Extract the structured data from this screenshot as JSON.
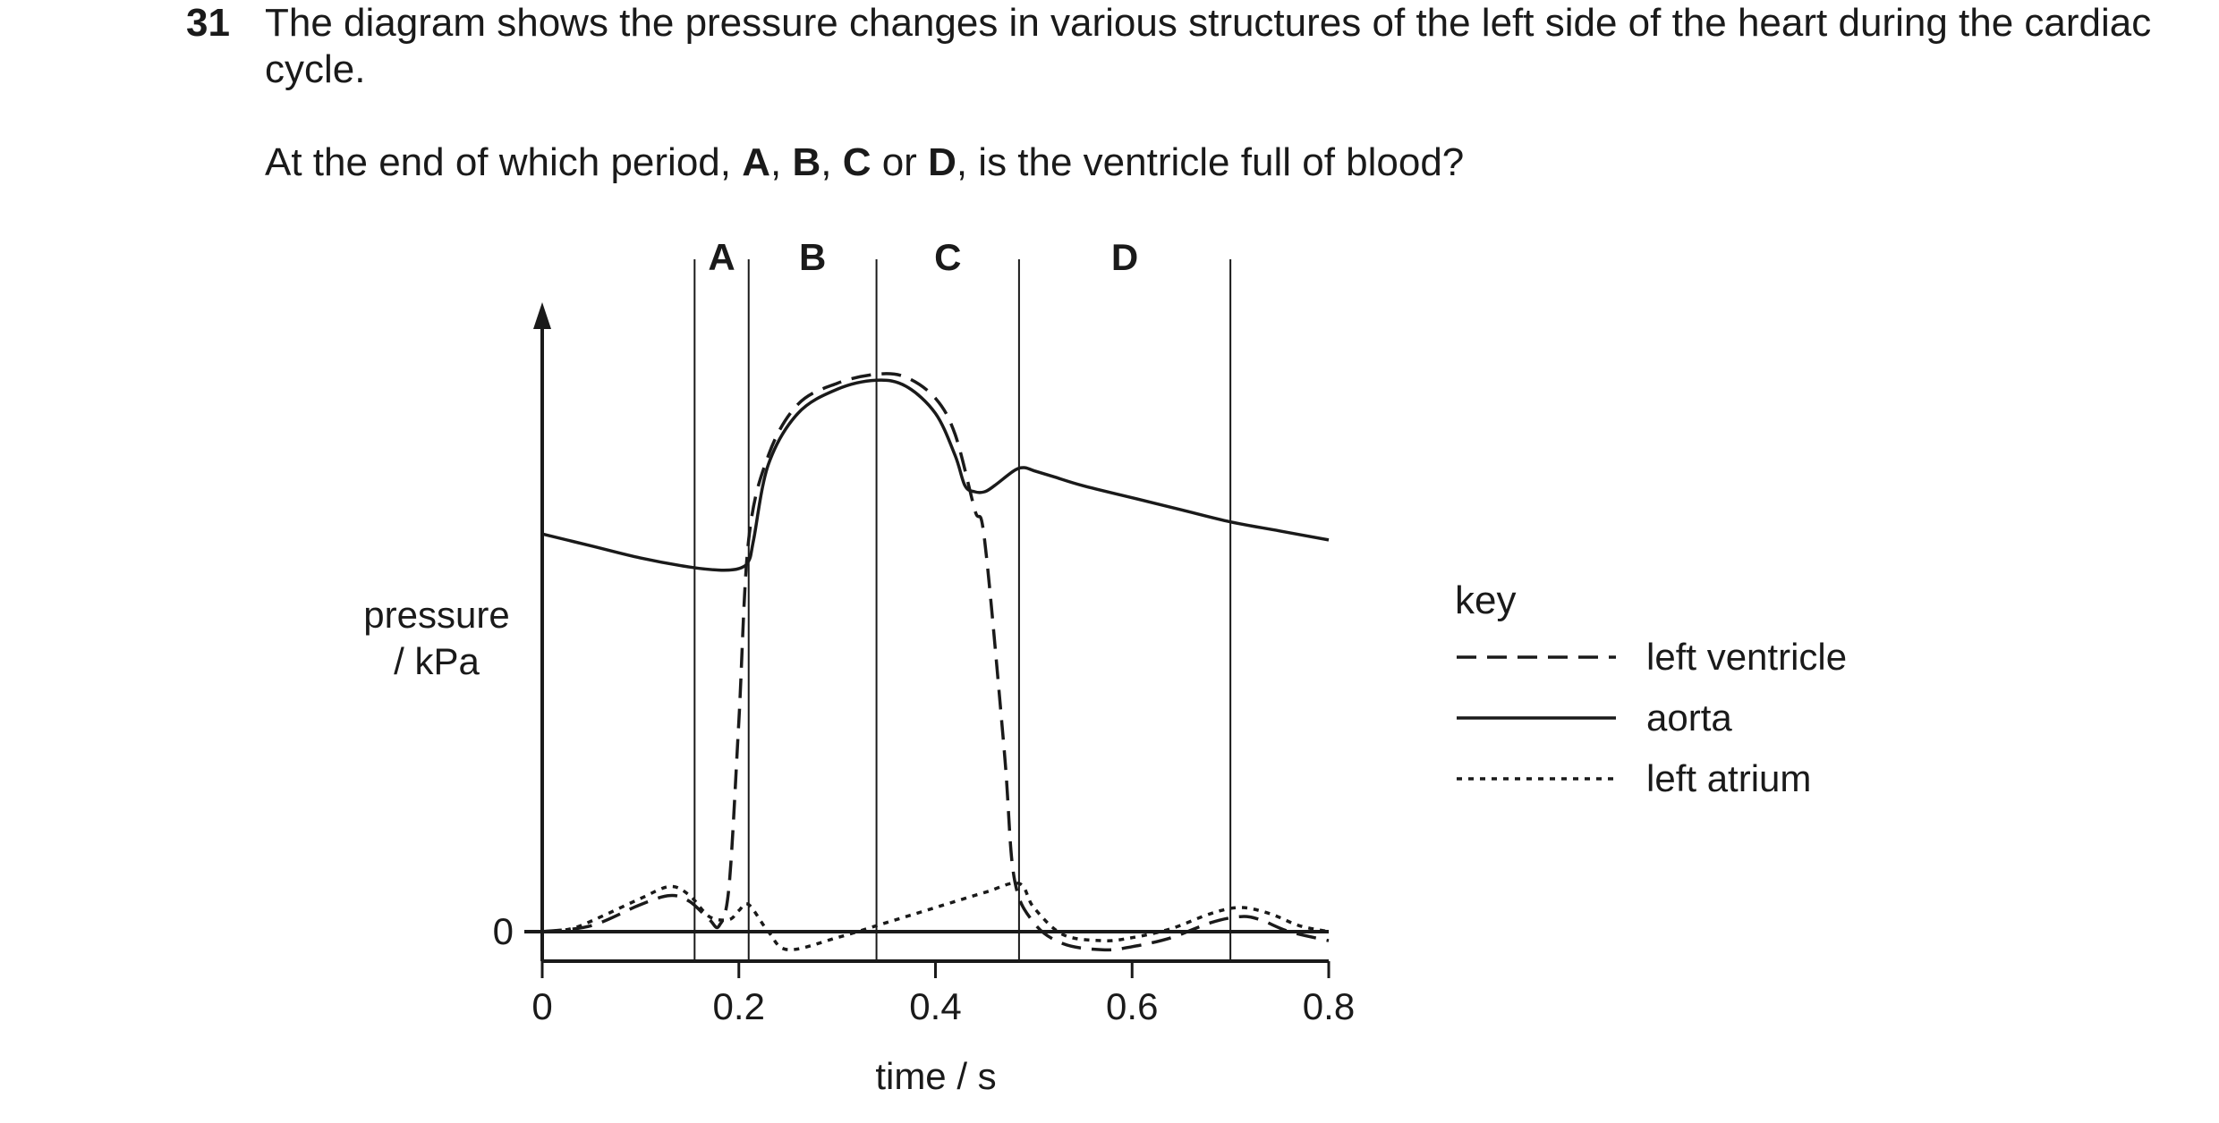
{
  "question": {
    "number": "31",
    "text": "The diagram shows the pressure changes in various structures of the left side of the heart during the cardiac cycle.",
    "prompt_parts": [
      "At the end of which period, ",
      "A",
      ", ",
      "B",
      ", ",
      "C",
      " or ",
      "D",
      ", is the ventricle full of blood?"
    ]
  },
  "chart_data": {
    "type": "line",
    "title": "",
    "xlabel": "time / s",
    "ylabel_lines": [
      "pressure",
      "/ kPa"
    ],
    "xlim": [
      0,
      0.8
    ],
    "x_ticks": [
      "0",
      "0.2",
      "0.4",
      "0.6",
      "0.8"
    ],
    "y_ticks": [
      "0"
    ],
    "y_scale": "pressure (unscaled, only zero marked)",
    "periods": [
      {
        "label": "A",
        "start": 0.155,
        "end": 0.21
      },
      {
        "label": "B",
        "start": 0.21,
        "end": 0.34
      },
      {
        "label": "C",
        "start": 0.34,
        "end": 0.485
      },
      {
        "label": "D",
        "start": 0.485,
        "end": 0.7
      }
    ],
    "series": [
      {
        "name": "left ventricle",
        "style": "dashed",
        "x": [
          0.0,
          0.05,
          0.1,
          0.13,
          0.15,
          0.17,
          0.18,
          0.19,
          0.2,
          0.21,
          0.23,
          0.26,
          0.3,
          0.34,
          0.37,
          0.4,
          0.42,
          0.44,
          0.45,
          0.47,
          0.48,
          0.5,
          0.53,
          0.57,
          0.6,
          0.64,
          0.68,
          0.71,
          0.73,
          0.76,
          0.8
        ],
        "y": [
          0.0,
          0.2,
          0.9,
          1.2,
          1.0,
          0.4,
          0.2,
          1.5,
          7.0,
          13.0,
          15.8,
          17.5,
          18.2,
          18.5,
          18.4,
          17.7,
          16.5,
          14.0,
          13.0,
          6.0,
          1.8,
          0.3,
          -0.4,
          -0.6,
          -0.5,
          -0.2,
          0.3,
          0.5,
          0.4,
          0.0,
          -0.3
        ]
      },
      {
        "name": "aorta",
        "style": "solid",
        "x": [
          0.0,
          0.05,
          0.1,
          0.15,
          0.18,
          0.2,
          0.21,
          0.215,
          0.23,
          0.26,
          0.3,
          0.34,
          0.37,
          0.4,
          0.42,
          0.43,
          0.44,
          0.45,
          0.46,
          0.48,
          0.49,
          0.5,
          0.52,
          0.55,
          0.6,
          0.65,
          0.7,
          0.75,
          0.8
        ],
        "y": [
          13.2,
          12.8,
          12.4,
          12.1,
          12.0,
          12.05,
          12.3,
          13.0,
          15.5,
          17.2,
          18.0,
          18.3,
          18.1,
          17.2,
          15.8,
          14.8,
          14.6,
          14.6,
          14.8,
          15.3,
          15.4,
          15.3,
          15.1,
          14.8,
          14.4,
          14.0,
          13.6,
          13.3,
          13.0
        ]
      },
      {
        "name": "left atrium",
        "style": "dotted",
        "x": [
          0.0,
          0.03,
          0.06,
          0.1,
          0.13,
          0.15,
          0.17,
          0.19,
          0.2,
          0.21,
          0.23,
          0.25,
          0.3,
          0.35,
          0.4,
          0.45,
          0.485,
          0.5,
          0.53,
          0.57,
          0.6,
          0.64,
          0.68,
          0.71,
          0.74,
          0.77,
          0.8
        ],
        "y": [
          0.0,
          0.1,
          0.5,
          1.1,
          1.5,
          1.2,
          0.5,
          0.4,
          0.7,
          0.9,
          0.0,
          -0.6,
          -0.2,
          0.3,
          0.8,
          1.3,
          1.6,
          0.8,
          -0.1,
          -0.3,
          -0.2,
          0.1,
          0.6,
          0.8,
          0.6,
          0.2,
          0.0
        ]
      }
    ],
    "legend": {
      "title": "key",
      "placement": "right",
      "entries": [
        {
          "label": "left ventricle",
          "style": "dashed"
        },
        {
          "label": "aorta",
          "style": "solid"
        },
        {
          "label": "left atrium",
          "style": "dotted"
        }
      ]
    }
  }
}
